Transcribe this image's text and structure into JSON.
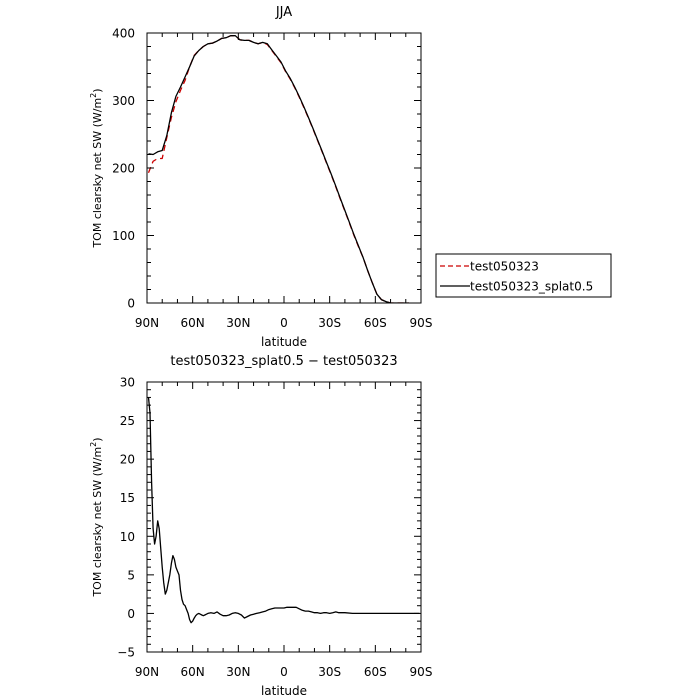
{
  "chart_data": [
    {
      "type": "line",
      "title": "JJA",
      "xlabel": "latitude",
      "ylabel": "TOM clearsky net SW (W/m",
      "ylabel_sup": "2",
      "ylabel_close": ")",
      "xlim": [
        90,
        -90
      ],
      "ylim": [
        0,
        400
      ],
      "x_ticks": [
        90,
        60,
        30,
        0,
        -30,
        -60,
        -90
      ],
      "x_tick_labels": [
        "90N",
        "60N",
        "30N",
        "0",
        "30S",
        "60S",
        "90S"
      ],
      "y_ticks": [
        0,
        100,
        200,
        300,
        400
      ],
      "y_tick_labels": [
        "0",
        "100",
        "200",
        "300",
        "400"
      ],
      "legend_position": "right",
      "series": [
        {
          "name": "test050323",
          "color": "#cc0000",
          "style": "dashed",
          "x": [
            89,
            86,
            83,
            80,
            77,
            74,
            71,
            68,
            65,
            62,
            59,
            56,
            53,
            50,
            47,
            44,
            41,
            38,
            35,
            32,
            29,
            26,
            23,
            20,
            17,
            14,
            11,
            8,
            5,
            2,
            -1,
            -4,
            -7,
            -10,
            -13,
            -16,
            -19,
            -22,
            -25,
            -28,
            -31,
            -34,
            -37,
            -40,
            -43,
            -46,
            -49,
            -52,
            -55,
            -58,
            -61,
            -64,
            -67,
            -70,
            -73,
            -76,
            -79,
            -82
          ],
          "y": [
            193,
            210,
            214,
            214,
            245,
            275,
            298,
            315,
            330,
            350,
            367,
            374,
            380,
            384,
            385,
            388,
            392,
            393,
            396,
            396,
            390,
            389,
            389,
            386,
            384,
            386,
            383,
            374,
            365,
            356,
            343,
            332,
            319,
            305,
            290,
            274,
            258,
            241,
            224,
            207,
            190,
            172,
            154,
            136,
            118,
            100,
            83,
            67,
            48,
            30,
            13,
            5,
            2,
            0,
            0,
            0,
            0,
            0
          ]
        },
        {
          "name": "test050323_splat0.5",
          "color": "#000000",
          "style": "solid",
          "x": [
            89,
            86,
            83,
            80,
            77,
            74,
            71,
            68,
            65,
            62,
            59,
            56,
            53,
            50,
            47,
            44,
            41,
            38,
            35,
            32,
            29,
            26,
            23,
            20,
            17,
            14,
            11,
            8,
            5,
            2,
            -1,
            -4,
            -7,
            -10,
            -13,
            -16,
            -19,
            -22,
            -25,
            -28,
            -31,
            -34,
            -37,
            -40,
            -43,
            -46,
            -49,
            -52,
            -55,
            -58,
            -61,
            -64,
            -67,
            -70,
            -73,
            -76,
            -79,
            -82
          ],
          "y": [
            221,
            220,
            224,
            226,
            248,
            282,
            306,
            320,
            335,
            350,
            366,
            374,
            380,
            384,
            385,
            388,
            392,
            393,
            396,
            396,
            390,
            389,
            389,
            386,
            384,
            386,
            384,
            375,
            366,
            357,
            344,
            333,
            320,
            306,
            291,
            275,
            259,
            242,
            225,
            208,
            191,
            173,
            155,
            137,
            119,
            101,
            84,
            67,
            48,
            30,
            13,
            5,
            2,
            0,
            0,
            0,
            0,
            0
          ]
        }
      ]
    },
    {
      "type": "line",
      "title": "test050323_splat0.5 − test050323",
      "xlabel": "latitude",
      "ylabel": "TOM clearsky net SW (W/m",
      "ylabel_sup": "2",
      "ylabel_close": ")",
      "xlim": [
        90,
        -90
      ],
      "ylim": [
        -5,
        30
      ],
      "x_ticks": [
        90,
        60,
        30,
        0,
        -30,
        -60,
        -90
      ],
      "x_tick_labels": [
        "90N",
        "60N",
        "30N",
        "0",
        "30S",
        "60S",
        "90S"
      ],
      "y_ticks": [
        -5,
        0,
        5,
        10,
        15,
        20,
        25,
        30
      ],
      "y_tick_labels": [
        "−5",
        "0",
        "5",
        "10",
        "15",
        "20",
        "25",
        "30"
      ],
      "series": [
        {
          "color": "#000000",
          "style": "solid",
          "x": [
            89,
            88,
            87,
            86,
            85,
            84,
            83,
            82,
            81,
            80,
            79,
            78,
            77,
            76,
            75,
            74,
            73,
            72,
            71,
            70,
            69,
            68,
            67,
            66,
            65,
            64,
            63,
            62,
            61,
            60,
            59,
            58,
            57,
            56,
            55,
            54,
            53,
            52,
            51,
            50,
            48,
            46,
            44,
            42,
            40,
            38,
            36,
            34,
            32,
            30,
            28,
            26,
            24,
            22,
            20,
            18,
            16,
            14,
            12,
            10,
            8,
            6,
            4,
            2,
            0,
            -2,
            -4,
            -6,
            -8,
            -10,
            -12,
            -14,
            -16,
            -18,
            -20,
            -22,
            -24,
            -26,
            -28,
            -30,
            -32,
            -34,
            -36,
            -40,
            -45,
            -50,
            -55,
            -60,
            -65,
            -70,
            -75,
            -80,
            -85,
            -89
          ],
          "y": [
            28,
            26,
            17,
            11,
            9,
            10,
            12,
            11,
            8.5,
            6,
            4,
            2.5,
            3,
            4,
            5,
            6.5,
            7.5,
            7,
            6,
            5.5,
            5,
            3,
            1.8,
            1.2,
            1,
            0.5,
            0,
            -0.8,
            -1.2,
            -1,
            -0.6,
            -0.3,
            -0.1,
            0,
            -0.1,
            -0.2,
            -0.3,
            -0.2,
            -0.1,
            0,
            0.1,
            0,
            0.2,
            -0.1,
            -0.3,
            -0.3,
            -0.2,
            0,
            0.1,
            0,
            -0.2,
            -0.6,
            -0.4,
            -0.2,
            -0.1,
            0,
            0.1,
            0.2,
            0.3,
            0.5,
            0.6,
            0.7,
            0.7,
            0.7,
            0.7,
            0.8,
            0.8,
            0.8,
            0.8,
            0.6,
            0.4,
            0.3,
            0.3,
            0.2,
            0.1,
            0.1,
            0,
            0.1,
            0.1,
            0,
            0.1,
            0.2,
            0.1,
            0.1,
            0,
            0,
            0,
            0,
            0,
            0,
            0,
            0,
            0,
            0
          ]
        }
      ]
    }
  ]
}
